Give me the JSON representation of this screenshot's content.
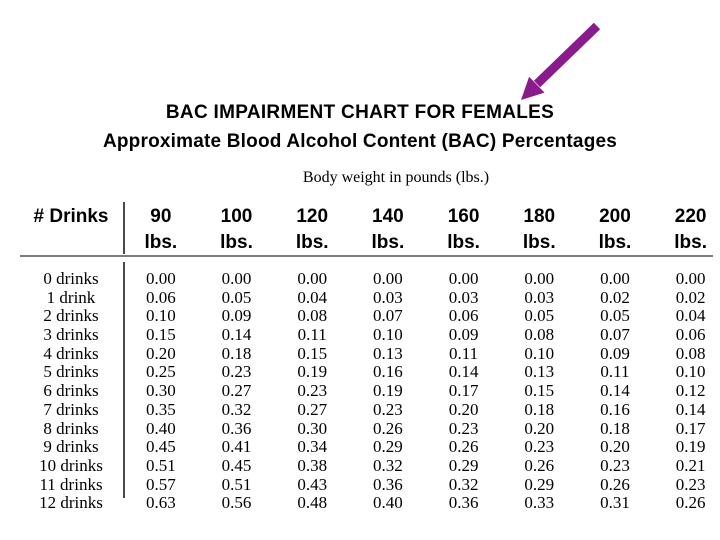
{
  "page": {
    "background": "#ffffff",
    "text_color": "#000000",
    "arrow_color": "#8a1b8c",
    "rule_color": "#7d7d7d"
  },
  "chart_data": {
    "type": "table",
    "title": "BAC IMPAIRMENT CHART FOR FEMALES",
    "subtitle": "Approximate Blood Alcohol Content (BAC) Percentages",
    "column_group_label": "Body weight in pounds (lbs.)",
    "row_header": "# Drinks",
    "columns": [
      {
        "weight": "90",
        "unit": "lbs."
      },
      {
        "weight": "100",
        "unit": "lbs."
      },
      {
        "weight": "120",
        "unit": "lbs."
      },
      {
        "weight": "140",
        "unit": "lbs."
      },
      {
        "weight": "160",
        "unit": "lbs."
      },
      {
        "weight": "180",
        "unit": "lbs."
      },
      {
        "weight": "200",
        "unit": "lbs."
      },
      {
        "weight": "220",
        "unit": "lbs."
      }
    ],
    "rows": [
      {
        "label": "0 drinks",
        "values": [
          "0.00",
          "0.00",
          "0.00",
          "0.00",
          "0.00",
          "0.00",
          "0.00",
          "0.00"
        ]
      },
      {
        "label": "1 drink",
        "values": [
          "0.06",
          "0.05",
          "0.04",
          "0.03",
          "0.03",
          "0.03",
          "0.02",
          "0.02"
        ]
      },
      {
        "label": "2 drinks",
        "values": [
          "0.10",
          "0.09",
          "0.08",
          "0.07",
          "0.06",
          "0.05",
          "0.05",
          "0.04"
        ]
      },
      {
        "label": "3 drinks",
        "values": [
          "0.15",
          "0.14",
          "0.11",
          "0.10",
          "0.09",
          "0.08",
          "0.07",
          "0.06"
        ]
      },
      {
        "label": "4 drinks",
        "values": [
          "0.20",
          "0.18",
          "0.15",
          "0.13",
          "0.11",
          "0.10",
          "0.09",
          "0.08"
        ]
      },
      {
        "label": "5 drinks",
        "values": [
          "0.25",
          "0.23",
          "0.19",
          "0.16",
          "0.14",
          "0.13",
          "0.11",
          "0.10"
        ]
      },
      {
        "label": "6 drinks",
        "values": [
          "0.30",
          "0.27",
          "0.23",
          "0.19",
          "0.17",
          "0.15",
          "0.14",
          "0.12"
        ]
      },
      {
        "label": "7 drinks",
        "values": [
          "0.35",
          "0.32",
          "0.27",
          "0.23",
          "0.20",
          "0.18",
          "0.16",
          "0.14"
        ]
      },
      {
        "label": "8 drinks",
        "values": [
          "0.40",
          "0.36",
          "0.30",
          "0.26",
          "0.23",
          "0.20",
          "0.18",
          "0.17"
        ]
      },
      {
        "label": "9 drinks",
        "values": [
          "0.45",
          "0.41",
          "0.34",
          "0.29",
          "0.26",
          "0.23",
          "0.20",
          "0.19"
        ]
      },
      {
        "label": "10 drinks",
        "values": [
          "0.51",
          "0.45",
          "0.38",
          "0.32",
          "0.29",
          "0.26",
          "0.23",
          "0.21"
        ]
      },
      {
        "label": "11 drinks",
        "values": [
          "0.57",
          "0.51",
          "0.43",
          "0.36",
          "0.32",
          "0.29",
          "0.26",
          "0.23"
        ]
      },
      {
        "label": "12 drinks",
        "values": [
          "0.63",
          "0.56",
          "0.48",
          "0.40",
          "0.36",
          "0.33",
          "0.31",
          "0.26"
        ]
      }
    ]
  }
}
